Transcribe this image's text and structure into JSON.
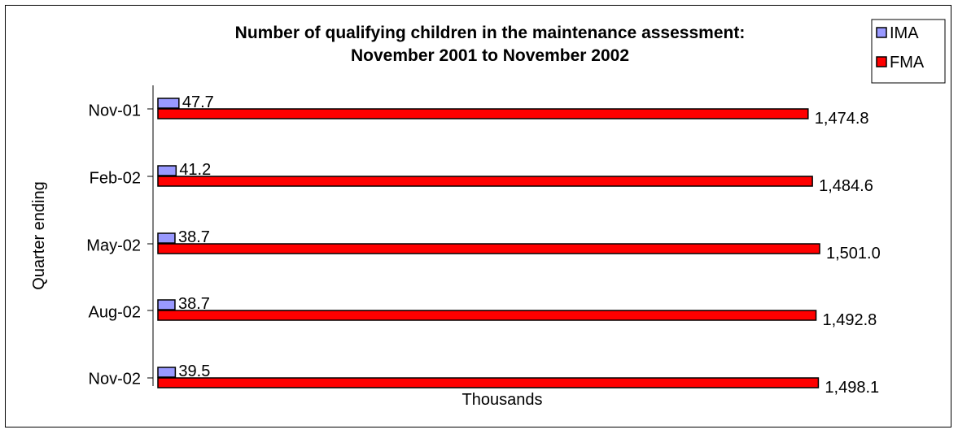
{
  "chart_data": {
    "type": "bar",
    "orientation": "horizontal",
    "title": [
      "Number of qualifying children in the maintenance assessment:",
      "November 2001 to November 2002"
    ],
    "xlabel": "Thousands",
    "ylabel": "Quarter ending",
    "categories": [
      "Nov-01",
      "Feb-02",
      "May-02",
      "Aug-02",
      "Nov-02"
    ],
    "series": [
      {
        "name": "IMA",
        "color": "#9999ff",
        "values": [
          47.7,
          41.2,
          38.7,
          38.7,
          39.5
        ],
        "labels": [
          "47.7",
          "41.2",
          "38.7",
          "38.7",
          "39.5"
        ]
      },
      {
        "name": "FMA",
        "color": "#ff0000",
        "values": [
          1474.8,
          1484.6,
          1501.0,
          1492.8,
          1498.1
        ],
        "labels": [
          "1,474.8",
          "1,484.6",
          "1,501.0",
          "1,492.8",
          "1,498.1"
        ]
      }
    ],
    "xlim": [
      0,
      1501.0
    ],
    "grid": false,
    "legend": "top-right"
  }
}
